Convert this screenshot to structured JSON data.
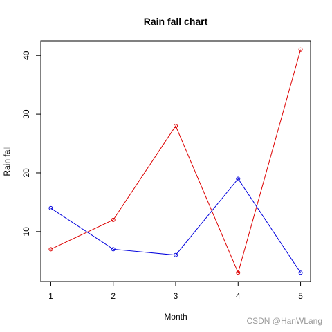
{
  "chart_data": {
    "type": "line",
    "title": "Rain fall chart",
    "xlabel": "Month",
    "ylabel": "Rain fall",
    "x": [
      1,
      2,
      3,
      4,
      5
    ],
    "xticks": [
      "1",
      "2",
      "3",
      "4",
      "5"
    ],
    "yticks": [
      "10",
      "20",
      "30",
      "40"
    ],
    "xlim": [
      0.84,
      5.16
    ],
    "ylim": [
      1.5,
      42.5
    ],
    "grid": false,
    "markers": "open-circle",
    "series": [
      {
        "color": "#dd0000",
        "values": [
          7,
          12,
          28,
          3,
          41
        ]
      },
      {
        "color": "#0000dd",
        "values": [
          14,
          7,
          6,
          19,
          3
        ]
      }
    ]
  },
  "watermark": "CSDN @HanWLang"
}
